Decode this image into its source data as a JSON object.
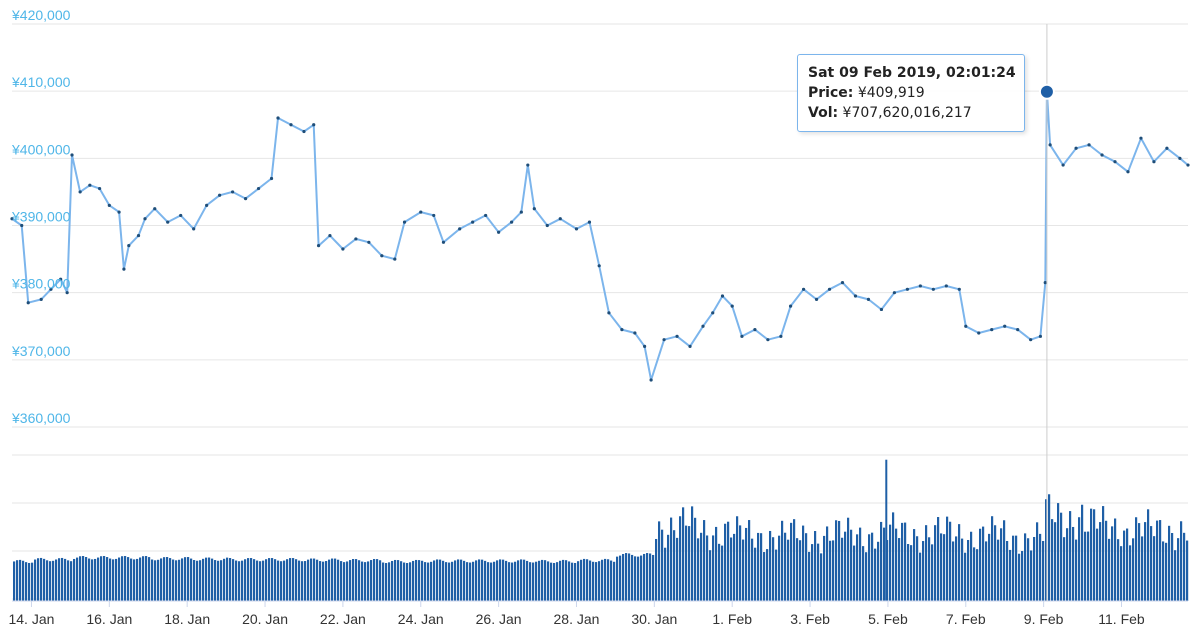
{
  "chart_data": {
    "type": "line",
    "y_axis": {
      "tick_labels": [
        "¥420,000",
        "¥410,000",
        "¥400,000",
        "¥390,000",
        "¥380,000",
        "¥370,000",
        "¥360,000"
      ],
      "ticks": [
        420000,
        410000,
        400000,
        390000,
        380000,
        370000,
        360000
      ],
      "ylim": [
        360000,
        420000
      ]
    },
    "x_axis": {
      "tick_labels": [
        "14. Jan",
        "16. Jan",
        "18. Jan",
        "20. Jan",
        "22. Jan",
        "24. Jan",
        "26. Jan",
        "28. Jan",
        "30. Jan",
        "1. Feb",
        "3. Feb",
        "5. Feb",
        "7. Feb",
        "9. Feb",
        "11. Feb"
      ],
      "ticks": [
        "2019-01-14",
        "2019-01-16",
        "2019-01-18",
        "2019-01-20",
        "2019-01-22",
        "2019-01-24",
        "2019-01-26",
        "2019-01-28",
        "2019-01-30",
        "2019-02-01",
        "2019-02-03",
        "2019-02-05",
        "2019-02-07",
        "2019-02-09",
        "2019-02-11"
      ],
      "range": [
        "2019-01-13T12:00",
        "2019-02-12T17:00"
      ]
    },
    "grid": true,
    "series": [
      {
        "role": "price",
        "color": "#7cb5ec",
        "marker_color": "#1f4e79",
        "points": [
          [
            "2019-01-13T12:00",
            391000
          ],
          [
            "2019-01-13T18:00",
            390000
          ],
          [
            "2019-01-13T22:00",
            378500
          ],
          [
            "2019-01-14T06:00",
            379000
          ],
          [
            "2019-01-14T12:00",
            380500
          ],
          [
            "2019-01-14T18:00",
            382000
          ],
          [
            "2019-01-14T22:00",
            380000
          ],
          [
            "2019-01-15T01:00",
            400500
          ],
          [
            "2019-01-15T06:00",
            395000
          ],
          [
            "2019-01-15T12:00",
            396000
          ],
          [
            "2019-01-15T18:00",
            395500
          ],
          [
            "2019-01-16T00:00",
            393000
          ],
          [
            "2019-01-16T06:00",
            392000
          ],
          [
            "2019-01-16T09:00",
            383500
          ],
          [
            "2019-01-16T12:00",
            387000
          ],
          [
            "2019-01-16T18:00",
            388500
          ],
          [
            "2019-01-16T22:00",
            391000
          ],
          [
            "2019-01-17T04:00",
            392500
          ],
          [
            "2019-01-17T12:00",
            390500
          ],
          [
            "2019-01-17T20:00",
            391500
          ],
          [
            "2019-01-18T04:00",
            389500
          ],
          [
            "2019-01-18T12:00",
            393000
          ],
          [
            "2019-01-18T20:00",
            394500
          ],
          [
            "2019-01-19T04:00",
            395000
          ],
          [
            "2019-01-19T12:00",
            394000
          ],
          [
            "2019-01-19T20:00",
            395500
          ],
          [
            "2019-01-20T04:00",
            397000
          ],
          [
            "2019-01-20T08:00",
            406000
          ],
          [
            "2019-01-20T16:00",
            405000
          ],
          [
            "2019-01-21T00:00",
            404000
          ],
          [
            "2019-01-21T06:00",
            405000
          ],
          [
            "2019-01-21T09:00",
            387000
          ],
          [
            "2019-01-21T16:00",
            388500
          ],
          [
            "2019-01-22T00:00",
            386500
          ],
          [
            "2019-01-22T08:00",
            388000
          ],
          [
            "2019-01-22T16:00",
            387500
          ],
          [
            "2019-01-23T00:00",
            385500
          ],
          [
            "2019-01-23T08:00",
            385000
          ],
          [
            "2019-01-23T14:00",
            390500
          ],
          [
            "2019-01-24T00:00",
            392000
          ],
          [
            "2019-01-24T08:00",
            391500
          ],
          [
            "2019-01-24T14:00",
            387500
          ],
          [
            "2019-01-25T00:00",
            389500
          ],
          [
            "2019-01-25T08:00",
            390500
          ],
          [
            "2019-01-25T16:00",
            391500
          ],
          [
            "2019-01-26T00:00",
            389000
          ],
          [
            "2019-01-26T08:00",
            390500
          ],
          [
            "2019-01-26T14:00",
            392000
          ],
          [
            "2019-01-26T18:00",
            399000
          ],
          [
            "2019-01-26T22:00",
            392500
          ],
          [
            "2019-01-27T06:00",
            390000
          ],
          [
            "2019-01-27T14:00",
            391000
          ],
          [
            "2019-01-28T00:00",
            389500
          ],
          [
            "2019-01-28T08:00",
            390500
          ],
          [
            "2019-01-28T14:00",
            384000
          ],
          [
            "2019-01-28T20:00",
            377000
          ],
          [
            "2019-01-29T04:00",
            374500
          ],
          [
            "2019-01-29T12:00",
            374000
          ],
          [
            "2019-01-29T18:00",
            372000
          ],
          [
            "2019-01-29T22:00",
            367000
          ],
          [
            "2019-01-30T06:00",
            373000
          ],
          [
            "2019-01-30T14:00",
            373500
          ],
          [
            "2019-01-30T22:00",
            372000
          ],
          [
            "2019-01-31T06:00",
            375000
          ],
          [
            "2019-01-31T12:00",
            377000
          ],
          [
            "2019-01-31T18:00",
            379500
          ],
          [
            "2019-02-01T00:00",
            378000
          ],
          [
            "2019-02-01T06:00",
            373500
          ],
          [
            "2019-02-01T14:00",
            374500
          ],
          [
            "2019-02-01T22:00",
            373000
          ],
          [
            "2019-02-02T06:00",
            373500
          ],
          [
            "2019-02-02T12:00",
            378000
          ],
          [
            "2019-02-02T20:00",
            380500
          ],
          [
            "2019-02-03T04:00",
            379000
          ],
          [
            "2019-02-03T12:00",
            380500
          ],
          [
            "2019-02-03T20:00",
            381500
          ],
          [
            "2019-02-04T04:00",
            379500
          ],
          [
            "2019-02-04T12:00",
            379000
          ],
          [
            "2019-02-04T20:00",
            377500
          ],
          [
            "2019-02-05T04:00",
            380000
          ],
          [
            "2019-02-05T12:00",
            380500
          ],
          [
            "2019-02-05T20:00",
            381000
          ],
          [
            "2019-02-06T04:00",
            380500
          ],
          [
            "2019-02-06T12:00",
            381000
          ],
          [
            "2019-02-06T20:00",
            380500
          ],
          [
            "2019-02-07T00:00",
            375000
          ],
          [
            "2019-02-07T08:00",
            374000
          ],
          [
            "2019-02-07T16:00",
            374500
          ],
          [
            "2019-02-08T00:00",
            375000
          ],
          [
            "2019-02-08T08:00",
            374500
          ],
          [
            "2019-02-08T16:00",
            373000
          ],
          [
            "2019-02-08T22:00",
            373500
          ],
          [
            "2019-02-09T01:00",
            381500
          ],
          [
            "2019-02-09T02:01",
            409919
          ],
          [
            "2019-02-09T04:00",
            402000
          ],
          [
            "2019-02-09T12:00",
            399000
          ],
          [
            "2019-02-09T20:00",
            401500
          ],
          [
            "2019-02-10T04:00",
            402000
          ],
          [
            "2019-02-10T12:00",
            400500
          ],
          [
            "2019-02-10T20:00",
            399500
          ],
          [
            "2019-02-11T04:00",
            398000
          ],
          [
            "2019-02-11T12:00",
            403000
          ],
          [
            "2019-02-11T20:00",
            399500
          ],
          [
            "2019-02-12T04:00",
            401500
          ],
          [
            "2019-02-12T12:00",
            400000
          ],
          [
            "2019-02-12T17:00",
            399000
          ]
        ]
      },
      {
        "role": "volume",
        "color": "#1f5fa6",
        "ylim": [
          0,
          310000000000
        ],
        "daily_levels": [
          [
            "2019-01-13",
            84000000000
          ],
          [
            "2019-01-14",
            88000000000
          ],
          [
            "2019-01-15",
            92000000000
          ],
          [
            "2019-01-16",
            92000000000
          ],
          [
            "2019-01-17",
            90000000000
          ],
          [
            "2019-01-18",
            89000000000
          ],
          [
            "2019-01-19",
            88000000000
          ],
          [
            "2019-01-20",
            88000000000
          ],
          [
            "2019-01-21",
            87000000000
          ],
          [
            "2019-01-22",
            86000000000
          ],
          [
            "2019-01-23",
            84000000000
          ],
          [
            "2019-01-24",
            85000000000
          ],
          [
            "2019-01-25",
            85000000000
          ],
          [
            "2019-01-26",
            85000000000
          ],
          [
            "2019-01-27",
            84000000000
          ],
          [
            "2019-01-28",
            86000000000
          ],
          [
            "2019-01-29",
            98000000000
          ],
          [
            "2019-01-30",
            160000000000
          ],
          [
            "2019-01-31",
            150000000000
          ],
          [
            "2019-02-01",
            140000000000
          ],
          [
            "2019-02-02",
            138000000000
          ],
          [
            "2019-02-03",
            140000000000
          ],
          [
            "2019-02-04",
            142000000000
          ],
          [
            "2019-02-05",
            145000000000
          ],
          [
            "2019-02-06",
            143000000000
          ],
          [
            "2019-02-07",
            140000000000
          ],
          [
            "2019-02-08",
            135000000000
          ],
          [
            "2019-02-09",
            180000000000
          ],
          [
            "2019-02-10",
            160000000000
          ],
          [
            "2019-02-11",
            150000000000
          ],
          [
            "2019-02-12",
            152000000000
          ]
        ],
        "peak": [
          "2019-02-04T23:00",
          300000000000
        ]
      }
    ],
    "crosshair": "2019-02-09T02:01",
    "tooltip": {
      "date": "Sat 09 Feb 2019, 02:01:24",
      "price_label": "Price:",
      "price_value": "¥409,919",
      "vol_label": "Vol:",
      "vol_value": "¥707,620,016,217"
    }
  }
}
